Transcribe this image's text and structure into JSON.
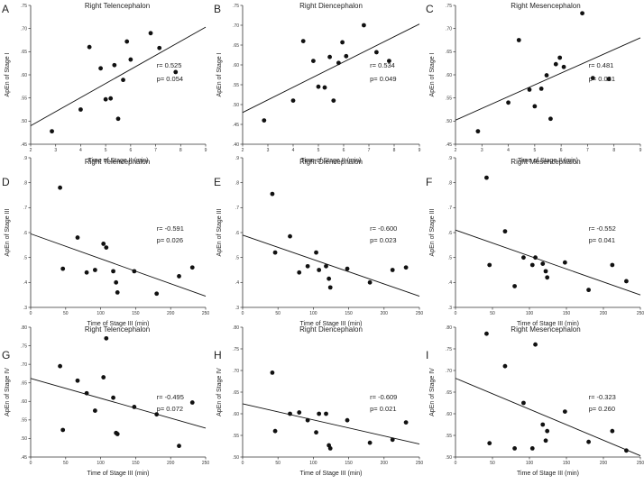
{
  "chart_data": [
    {
      "letter": "A",
      "type": "scatter",
      "title": "Right Telencephalon",
      "xlabel": "Time of Stage II (min)",
      "ylabel": "ApEn of Stage I",
      "xlim": [
        2,
        9
      ],
      "ylim": [
        0.45,
        0.75
      ],
      "xticks": [
        "2",
        "3",
        "4",
        "5",
        "6",
        "7",
        "8",
        "9"
      ],
      "yticks": [
        ".45",
        ".50",
        ".55",
        ".60",
        ".65",
        ".70",
        ".75"
      ],
      "x": [
        2.85,
        4.0,
        4.35,
        4.8,
        5.0,
        5.2,
        5.35,
        5.5,
        5.7,
        5.85,
        6.0,
        6.8,
        7.15,
        7.8
      ],
      "y": [
        0.478,
        0.525,
        0.66,
        0.614,
        0.547,
        0.549,
        0.621,
        0.505,
        0.589,
        0.672,
        0.633,
        0.69,
        0.658,
        0.606
      ],
      "fit": [
        0.49,
        0.703
      ],
      "r_text": "r= 0.525",
      "p_text": "p= 0.054"
    },
    {
      "letter": "B",
      "type": "scatter",
      "title": "Right Diencephalon",
      "xlabel": "Time of Stage II (min)",
      "ylabel": "ApEn of Stage I",
      "xlim": [
        2,
        9
      ],
      "ylim": [
        0.4,
        0.75
      ],
      "xticks": [
        "2",
        "3",
        "4",
        "5",
        "6",
        "7",
        "8",
        "9"
      ],
      "yticks": [
        ".40",
        ".45",
        ".50",
        ".55",
        ".60",
        ".65",
        ".70",
        ".75"
      ],
      "x": [
        2.85,
        4.0,
        4.4,
        4.8,
        5.0,
        5.25,
        5.45,
        5.6,
        5.8,
        5.95,
        6.1,
        6.8,
        7.3,
        7.8
      ],
      "y": [
        0.46,
        0.51,
        0.66,
        0.61,
        0.545,
        0.543,
        0.62,
        0.51,
        0.605,
        0.657,
        0.622,
        0.7,
        0.632,
        0.61
      ],
      "fit": [
        0.48,
        0.703
      ],
      "r_text": "r= 0.534",
      "p_text": "p= 0.049"
    },
    {
      "letter": "C",
      "type": "scatter",
      "title": "Right Mesencephalon",
      "xlabel": "Time of Stage II (min)",
      "ylabel": "ApEn of Stage I",
      "xlim": [
        2,
        9
      ],
      "ylim": [
        0.45,
        0.75
      ],
      "xticks": [
        "2",
        "3",
        "4",
        "5",
        "6",
        "7",
        "8",
        "9"
      ],
      "yticks": [
        ".45",
        ".50",
        ".55",
        ".60",
        ".65",
        ".70",
        ".75"
      ],
      "x": [
        2.85,
        4.0,
        4.4,
        4.8,
        5.0,
        5.25,
        5.45,
        5.6,
        5.8,
        5.95,
        6.1,
        6.8,
        7.2,
        7.8
      ],
      "y": [
        0.478,
        0.54,
        0.675,
        0.568,
        0.532,
        0.57,
        0.599,
        0.505,
        0.623,
        0.637,
        0.617,
        0.733,
        0.593,
        0.591
      ],
      "fit": [
        0.502,
        0.68
      ],
      "r_text": "r= 0.481",
      "p_text": "p= 0.081"
    },
    {
      "letter": "D",
      "type": "scatter",
      "title": "Right Telencephalon",
      "xlabel": "Time of Stage III (min)",
      "ylabel": "ApEn of Stage III",
      "xlim": [
        0,
        250
      ],
      "ylim": [
        0.3,
        0.9
      ],
      "xticks": [
        "0",
        "50",
        "100",
        "150",
        "200",
        "250"
      ],
      "yticks": [
        ".3",
        ".4",
        ".5",
        ".6",
        ".7",
        ".8",
        ".9"
      ],
      "x": [
        42,
        46,
        67,
        80,
        92,
        104,
        108,
        118,
        122,
        124,
        148,
        180,
        212,
        231
      ],
      "y": [
        0.78,
        0.455,
        0.58,
        0.44,
        0.45,
        0.555,
        0.54,
        0.445,
        0.4,
        0.36,
        0.445,
        0.355,
        0.425,
        0.46
      ],
      "fit": [
        0.595,
        0.345
      ],
      "r_text": "r= -0.591",
      "p_text": "p= 0.026"
    },
    {
      "letter": "E",
      "type": "scatter",
      "title": "Right Diencephalon",
      "xlabel": "Time of Stage III (min)",
      "ylabel": "ApEn of Stage III",
      "xlim": [
        0,
        250
      ],
      "ylim": [
        0.3,
        0.9
      ],
      "xticks": [
        "0",
        "50",
        "100",
        "150",
        "200",
        "250"
      ],
      "yticks": [
        ".3",
        ".4",
        ".5",
        ".6",
        ".7",
        ".8",
        ".9"
      ],
      "x": [
        42,
        46,
        67,
        80,
        92,
        104,
        108,
        118,
        122,
        124,
        148,
        180,
        212,
        231
      ],
      "y": [
        0.755,
        0.52,
        0.585,
        0.44,
        0.465,
        0.52,
        0.45,
        0.465,
        0.415,
        0.38,
        0.455,
        0.4,
        0.45,
        0.46
      ],
      "fit": [
        0.59,
        0.345
      ],
      "r_text": "r= -0.600",
      "p_text": "p= 0.023"
    },
    {
      "letter": "F",
      "type": "scatter",
      "title": "Right Mesencephalon",
      "xlabel": "Time of Stage III (min)",
      "ylabel": "ApEn of Stage III",
      "xlim": [
        0,
        250
      ],
      "ylim": [
        0.3,
        0.9
      ],
      "xticks": [
        "0",
        "50",
        "100",
        "150",
        "200",
        "250"
      ],
      "yticks": [
        ".3",
        ".4",
        ".5",
        ".6",
        ".7",
        ".8",
        ".9"
      ],
      "x": [
        42,
        46,
        67,
        80,
        92,
        104,
        108,
        118,
        122,
        124,
        148,
        180,
        212,
        231
      ],
      "y": [
        0.82,
        0.47,
        0.605,
        0.385,
        0.5,
        0.47,
        0.5,
        0.475,
        0.445,
        0.42,
        0.48,
        0.37,
        0.47,
        0.405
      ],
      "fit": [
        0.61,
        0.35
      ],
      "r_text": "r= -0.552",
      "p_text": "p= 0.041"
    },
    {
      "letter": "G",
      "type": "scatter",
      "title": "Right Telencephalon",
      "xlabel": "Time of Stage III (min)",
      "ylabel": "ApEn of Stage IV",
      "xlim": [
        0,
        250
      ],
      "ylim": [
        0.45,
        0.8
      ],
      "xticks": [
        "0",
        "50",
        "100",
        "150",
        "200",
        "250"
      ],
      "yticks": [
        ".45",
        ".50",
        ".55",
        ".60",
        ".65",
        ".70",
        ".75",
        ".80"
      ],
      "x": [
        42,
        46,
        67,
        80,
        92,
        104,
        108,
        118,
        122,
        124,
        148,
        180,
        212,
        231
      ],
      "y": [
        0.695,
        0.523,
        0.656,
        0.622,
        0.575,
        0.665,
        0.77,
        0.61,
        0.515,
        0.512,
        0.585,
        0.565,
        0.48,
        0.597
      ],
      "fit": [
        0.662,
        0.528
      ],
      "r_text": "r= -0.495",
      "p_text": "p= 0.072"
    },
    {
      "letter": "H",
      "type": "scatter",
      "title": "Right Diencephalon",
      "xlabel": "Time of Stage III (min)",
      "ylabel": "ApEn of Stage IV",
      "xlim": [
        0,
        250
      ],
      "ylim": [
        0.5,
        0.8
      ],
      "xticks": [
        "0",
        "50",
        "100",
        "150",
        "200",
        "250"
      ],
      "yticks": [
        ".50",
        ".55",
        ".60",
        ".65",
        ".70",
        ".75",
        ".80"
      ],
      "x": [
        42,
        46,
        67,
        80,
        92,
        104,
        108,
        118,
        122,
        124,
        148,
        180,
        212,
        231
      ],
      "y": [
        0.695,
        0.56,
        0.6,
        0.603,
        0.585,
        0.557,
        0.6,
        0.6,
        0.527,
        0.52,
        0.585,
        0.533,
        0.54,
        0.58
      ],
      "fit": [
        0.623,
        0.53
      ],
      "r_text": "r= -0.609",
      "p_text": "p= 0.021"
    },
    {
      "letter": "I",
      "type": "scatter",
      "title": "Right Mesencephalon",
      "xlabel": "Time of Stage III (min)",
      "ylabel": "ApEn of Stage IV",
      "xlim": [
        0,
        250
      ],
      "ylim": [
        0.5,
        0.8
      ],
      "xticks": [
        "0",
        "50",
        "100",
        "150",
        "200",
        "250"
      ],
      "yticks": [
        ".50",
        ".55",
        ".60",
        ".65",
        ".70",
        ".75",
        ".80"
      ],
      "x": [
        42,
        46,
        67,
        80,
        92,
        104,
        108,
        118,
        122,
        124,
        148,
        180,
        212,
        231
      ],
      "y": [
        0.785,
        0.532,
        0.71,
        0.52,
        0.625,
        0.52,
        0.76,
        0.575,
        0.538,
        0.56,
        0.605,
        0.535,
        0.56,
        0.515
      ],
      "fit": [
        0.682,
        0.503
      ],
      "r_text": "r= -0.323",
      "p_text": "p= 0.260"
    }
  ]
}
